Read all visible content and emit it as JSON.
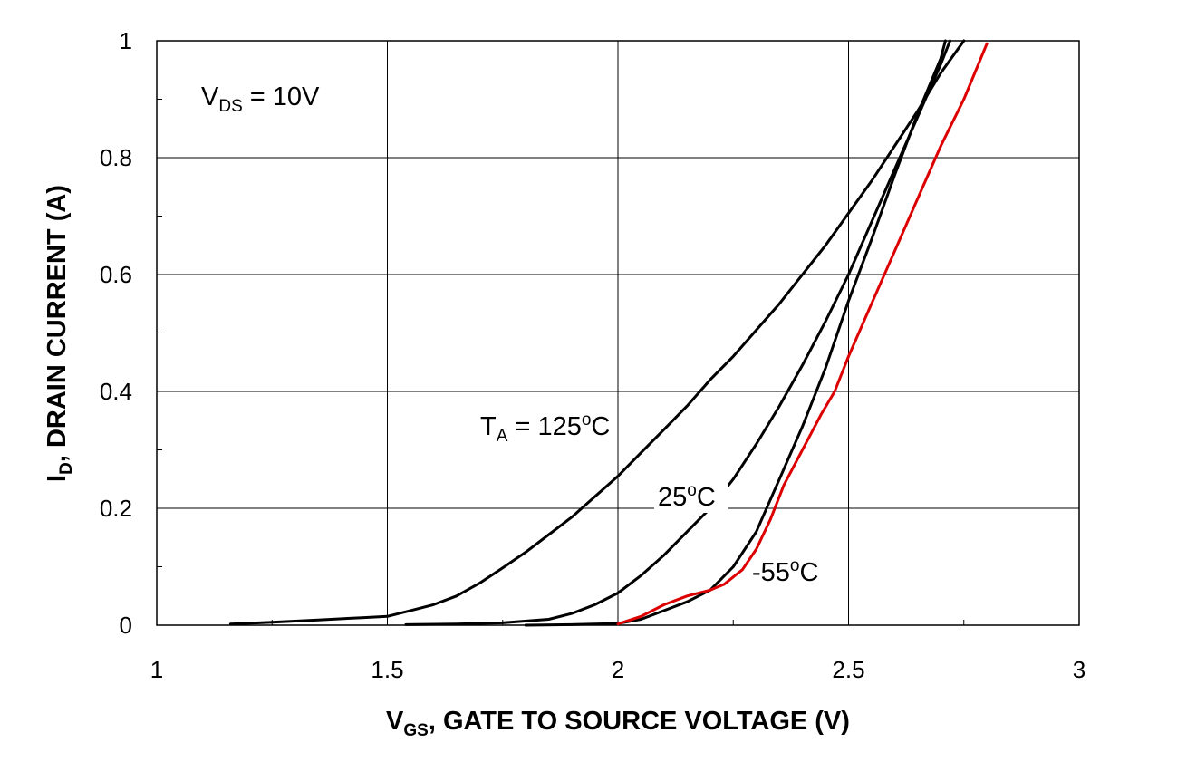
{
  "chart_data": {
    "type": "line",
    "xlabel": {
      "main": "V",
      "sub": "GS",
      "rest": ", GATE TO SOURCE VOLTAGE (V)"
    },
    "ylabel": {
      "main": "I",
      "sub": "D",
      "rest": ", DRAIN CURRENT (A)"
    },
    "xlim": [
      1,
      3
    ],
    "ylim": [
      0,
      1
    ],
    "x_ticks": [
      {
        "value": 1,
        "label": "1"
      },
      {
        "value": 1.5,
        "label": "1.5"
      },
      {
        "value": 2,
        "label": "2"
      },
      {
        "value": 2.5,
        "label": "2.5"
      },
      {
        "value": 3,
        "label": "3"
      }
    ],
    "y_ticks": [
      {
        "value": 0,
        "label": "0"
      },
      {
        "value": 0.2,
        "label": "0.2"
      },
      {
        "value": 0.4,
        "label": "0.4"
      },
      {
        "value": 0.6,
        "label": "0.6"
      },
      {
        "value": 0.8,
        "label": "0.8"
      },
      {
        "value": 1,
        "label": "1"
      }
    ],
    "grid": true,
    "annotations": {
      "vds": {
        "main": "V",
        "sub": "DS",
        "rest": " = 10V"
      },
      "t125": {
        "main": "T",
        "sub": "A",
        "rest": " = 125",
        "sup": "o",
        "unit": "C"
      },
      "t25": {
        "main": "25",
        "sup": "o",
        "unit": "C"
      },
      "tm55": {
        "main": "-55",
        "sup": "o",
        "unit": "C"
      }
    },
    "series": [
      {
        "color": "#000000",
        "points": [
          [
            1.16,
            0.002
          ],
          [
            1.25,
            0.005
          ],
          [
            1.35,
            0.009
          ],
          [
            1.45,
            0.013
          ],
          [
            1.5,
            0.015
          ],
          [
            1.55,
            0.025
          ],
          [
            1.6,
            0.035
          ],
          [
            1.65,
            0.05
          ],
          [
            1.7,
            0.072
          ],
          [
            1.75,
            0.098
          ],
          [
            1.8,
            0.125
          ],
          [
            1.85,
            0.155
          ],
          [
            1.9,
            0.185
          ],
          [
            1.95,
            0.22
          ],
          [
            2.0,
            0.255
          ],
          [
            2.05,
            0.295
          ],
          [
            2.1,
            0.335
          ],
          [
            2.15,
            0.375
          ],
          [
            2.2,
            0.42
          ],
          [
            2.25,
            0.46
          ],
          [
            2.3,
            0.505
          ],
          [
            2.35,
            0.55
          ],
          [
            2.4,
            0.6
          ],
          [
            2.45,
            0.65
          ],
          [
            2.5,
            0.705
          ],
          [
            2.55,
            0.76
          ],
          [
            2.6,
            0.82
          ],
          [
            2.65,
            0.88
          ],
          [
            2.7,
            0.945
          ],
          [
            2.75,
            1.0
          ]
        ]
      },
      {
        "color": "#000000",
        "points": [
          [
            1.54,
            0.001
          ],
          [
            1.65,
            0.002
          ],
          [
            1.75,
            0.004
          ],
          [
            1.85,
            0.01
          ],
          [
            1.9,
            0.02
          ],
          [
            1.95,
            0.035
          ],
          [
            2.0,
            0.055
          ],
          [
            2.05,
            0.085
          ],
          [
            2.1,
            0.12
          ],
          [
            2.15,
            0.16
          ],
          [
            2.2,
            0.2
          ],
          [
            2.25,
            0.25
          ],
          [
            2.3,
            0.31
          ],
          [
            2.35,
            0.375
          ],
          [
            2.4,
            0.445
          ],
          [
            2.45,
            0.52
          ],
          [
            2.5,
            0.6
          ],
          [
            2.55,
            0.69
          ],
          [
            2.6,
            0.78
          ],
          [
            2.65,
            0.87
          ],
          [
            2.7,
            0.96
          ],
          [
            2.72,
            1.0
          ]
        ]
      },
      {
        "color": "#000000",
        "points": [
          [
            1.8,
            0.0
          ],
          [
            1.9,
            0.001
          ],
          [
            2.0,
            0.003
          ],
          [
            2.05,
            0.01
          ],
          [
            2.1,
            0.025
          ],
          [
            2.15,
            0.04
          ],
          [
            2.2,
            0.06
          ],
          [
            2.25,
            0.1
          ],
          [
            2.3,
            0.16
          ],
          [
            2.35,
            0.25
          ],
          [
            2.4,
            0.34
          ],
          [
            2.45,
            0.44
          ],
          [
            2.5,
            0.555
          ],
          [
            2.55,
            0.66
          ],
          [
            2.6,
            0.77
          ],
          [
            2.65,
            0.875
          ],
          [
            2.7,
            0.97
          ],
          [
            2.71,
            1.0
          ]
        ]
      },
      {
        "color": "#dd0000",
        "points": [
          [
            2.0,
            0.002
          ],
          [
            2.05,
            0.015
          ],
          [
            2.1,
            0.035
          ],
          [
            2.15,
            0.05
          ],
          [
            2.2,
            0.06
          ],
          [
            2.23,
            0.07
          ],
          [
            2.27,
            0.095
          ],
          [
            2.3,
            0.13
          ],
          [
            2.33,
            0.18
          ],
          [
            2.36,
            0.24
          ],
          [
            2.4,
            0.3
          ],
          [
            2.44,
            0.36
          ],
          [
            2.47,
            0.4
          ],
          [
            2.5,
            0.46
          ],
          [
            2.55,
            0.55
          ],
          [
            2.6,
            0.64
          ],
          [
            2.65,
            0.73
          ],
          [
            2.7,
            0.82
          ],
          [
            2.75,
            0.9
          ],
          [
            2.8,
            0.995
          ]
        ]
      }
    ]
  }
}
